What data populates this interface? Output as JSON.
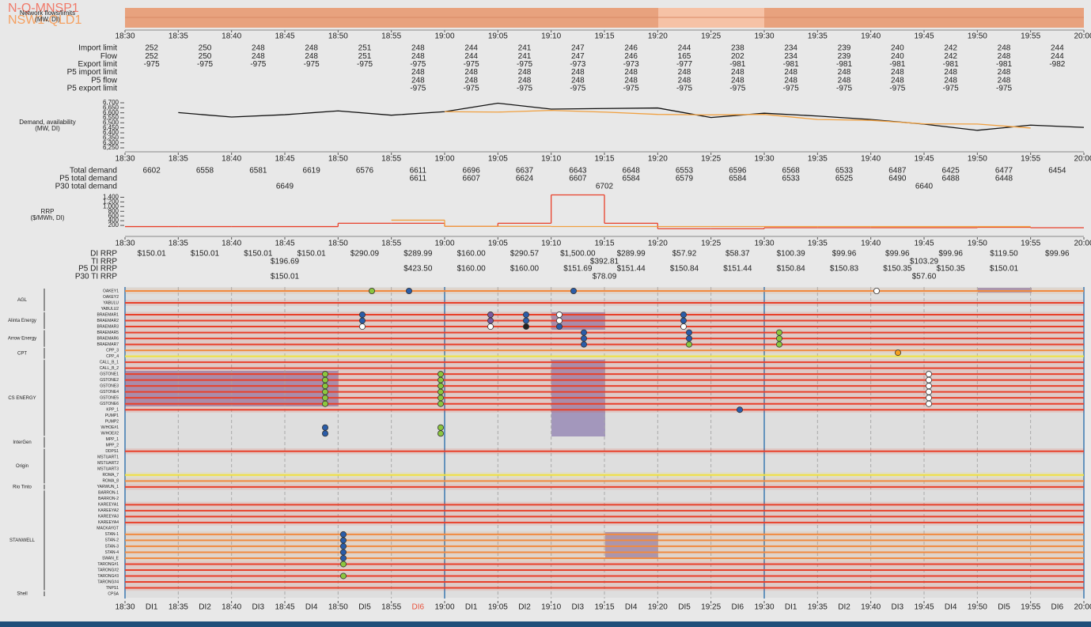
{
  "header": {
    "title": "N-Q-MNSP1",
    "subtitle": "NSW1-QLD1"
  },
  "time_ticks": [
    "18:30",
    "18:35",
    "18:40",
    "18:45",
    "18:50",
    "18:55",
    "19:00",
    "19:05",
    "19:10",
    "19:15",
    "19:20",
    "19:25",
    "19:30",
    "19:35",
    "19:40",
    "19:45",
    "19:50",
    "19:55",
    "20:00"
  ],
  "flows": {
    "label": [
      "Network flows/limits",
      "(MW, DI)"
    ],
    "rows": [
      {
        "label": "Import limit",
        "values": [
          252,
          250,
          248,
          248,
          251,
          248,
          244,
          241,
          247,
          246,
          244,
          238,
          234,
          239,
          240,
          242,
          248,
          244
        ]
      },
      {
        "label": "Flow",
        "values": [
          252,
          250,
          248,
          248,
          251,
          248,
          244,
          241,
          247,
          246,
          165,
          202,
          234,
          239,
          240,
          242,
          248,
          244
        ]
      },
      {
        "label": "Export limit",
        "values": [
          -975,
          -975,
          -975,
          -975,
          -975,
          -975,
          -975,
          -975,
          -973,
          -973,
          -977,
          -981,
          -981,
          -981,
          -981,
          -981,
          -981,
          -982
        ]
      },
      {
        "label": "P5 import limit",
        "values": [
          null,
          null,
          null,
          null,
          null,
          248,
          248,
          248,
          248,
          248,
          248,
          248,
          248,
          248,
          248,
          248,
          248,
          null
        ]
      },
      {
        "label": "P5 flow",
        "values": [
          null,
          null,
          null,
          null,
          null,
          248,
          248,
          248,
          248,
          248,
          248,
          248,
          248,
          248,
          248,
          248,
          248,
          null
        ]
      },
      {
        "label": "P5 export limit",
        "values": [
          null,
          null,
          null,
          null,
          null,
          -975,
          -975,
          -975,
          -975,
          -975,
          -975,
          -975,
          -975,
          -975,
          -975,
          -975,
          -975,
          null
        ]
      }
    ]
  },
  "demand": {
    "label": [
      "Demand, availability",
      "(MW, DI)"
    ],
    "ylim": [
      6250,
      6700
    ],
    "yticks": [
      {
        "value": 6250,
        "label": "6,250"
      },
      {
        "value": 6300,
        "label": "6,300"
      },
      {
        "value": 6350,
        "label": "6,350"
      },
      {
        "value": 6400,
        "label": "6,400"
      },
      {
        "value": 6450,
        "label": "6,450"
      },
      {
        "value": 6500,
        "label": "6,500"
      },
      {
        "value": 6550,
        "label": "6,550"
      },
      {
        "value": 6600,
        "label": "6,600"
      },
      {
        "value": 6650,
        "label": "6,650"
      },
      {
        "value": 6700,
        "label": "6,700"
      }
    ],
    "rows": [
      {
        "label": "Total demand",
        "color": "#111111",
        "values": [
          6602,
          6558,
          6581,
          6619,
          6576,
          6611,
          6696,
          6637,
          6643,
          6648,
          6553,
          6596,
          6568,
          6533,
          6487,
          6425,
          6477,
          6454
        ]
      },
      {
        "label": "P5 total demand",
        "color": "#f0a040",
        "values": [
          null,
          null,
          null,
          null,
          null,
          6611,
          6607,
          6624,
          6607,
          6584,
          6579,
          6584,
          6533,
          6525,
          6490,
          6488,
          6448,
          null
        ]
      },
      {
        "label": "P30 total demand",
        "values": [
          6649,
          6702,
          6640
        ]
      }
    ]
  },
  "rrp": {
    "label": [
      "RRP",
      "($/MWh, DI)"
    ],
    "ylim": [
      0,
      1500
    ],
    "yticks": [
      200,
      400,
      {
        "value": 600,
        "label": "600"
      },
      800,
      {
        "value": 1000,
        "label": "1,000"
      },
      {
        "value": 1200,
        "label": "1,200"
      },
      {
        "value": 1400,
        "label": "1,400"
      }
    ],
    "rows": [
      {
        "label": "DI RRP",
        "color": "#e8402a",
        "values": [
          150.01,
          150.01,
          150.01,
          150.01,
          290.09,
          289.99,
          160.0,
          290.57,
          1500.0,
          289.99,
          57.92,
          58.37,
          100.39,
          99.96,
          99.96,
          99.96,
          119.5,
          99.96
        ],
        "value_labels": [
          "$150.01",
          "$150.01",
          "$150.01",
          "$150.01",
          "$290.09",
          "$289.99",
          "$160.00",
          "$290.57",
          "$1,500.00",
          "$289.99",
          "$57.92",
          "$58.37",
          "$100.39",
          "$99.96",
          "$99.96",
          "$99.96",
          "$119.50",
          "$99.96"
        ]
      },
      {
        "label": "TI RRP",
        "values": [
          196.69,
          392.81,
          103.29
        ],
        "value_labels": [
          "$196.69",
          "$392.81",
          "$103.29"
        ]
      },
      {
        "label": "P5 DI RRP",
        "color": "#f0a040",
        "values": [
          null,
          null,
          null,
          null,
          null,
          423.5,
          160.0,
          160.0,
          151.69,
          151.44,
          150.84,
          151.44,
          150.84,
          150.83,
          150.35,
          150.35,
          150.01,
          null
        ],
        "value_labels": [
          null,
          null,
          null,
          null,
          null,
          "$423.50",
          "$160.00",
          "$160.00",
          "$151.69",
          "$151.44",
          "$150.84",
          "$151.44",
          "$150.84",
          "$150.83",
          "$150.35",
          "$150.35",
          "$150.01",
          null
        ]
      },
      {
        "label": "P30 TI RRP",
        "values": [
          150.01,
          78.09,
          57.6
        ],
        "value_labels": [
          "$150.01",
          "$78.09",
          "$57.60"
        ]
      }
    ]
  },
  "bids": {
    "groups": [
      {
        "name": "AGL",
        "units": [
          {
            "name": "OAKEY1",
            "color": "#f08a40"
          },
          {
            "name": "OAKEY2"
          },
          {
            "name": "YABULU",
            "color": "#e8402a"
          },
          {
            "name": "YABULU2"
          }
        ]
      },
      {
        "name": "Alinta Energy",
        "units": [
          {
            "name": "BRAEMAR1",
            "color": "#e8402a"
          },
          {
            "name": "BRAEMAR2",
            "color": "#e8402a"
          },
          {
            "name": "BRAEMAR3",
            "color": "#e8402a"
          }
        ]
      },
      {
        "name": "Arrow Energy",
        "units": [
          {
            "name": "BRAEMAR5",
            "color": "#e8402a"
          },
          {
            "name": "BRAEMAR6",
            "color": "#e8402a"
          },
          {
            "name": "BRAEMAR7",
            "color": "#e8402a"
          }
        ]
      },
      {
        "name": "CPT",
        "units": [
          {
            "name": "CPP_3",
            "color": "#f08a40"
          },
          {
            "name": "CPP_4",
            "color": "#f0e040"
          }
        ]
      },
      {
        "name": "CS ENERGY",
        "units": [
          {
            "name": "CALL_B_1",
            "color": "#e8402a"
          },
          {
            "name": "CALL_B_2",
            "color": "#e8402a"
          },
          {
            "name": "GSTONE1",
            "color": "#e8402a"
          },
          {
            "name": "GSTONE2",
            "color": "#e8402a"
          },
          {
            "name": "GSTONE3",
            "color": "#e8402a"
          },
          {
            "name": "GSTONE4",
            "color": "#e8402a"
          },
          {
            "name": "GSTONE5",
            "color": "#e8402a"
          },
          {
            "name": "GSTONE6",
            "color": "#e8402a"
          },
          {
            "name": "KPP_1",
            "color": "#e8402a"
          },
          {
            "name": "PUMP1"
          },
          {
            "name": "PUMP2"
          },
          {
            "name": "W/HOE#1"
          },
          {
            "name": "W/HOE#2"
          }
        ]
      },
      {
        "name": "InterGen",
        "units": [
          {
            "name": "MPP_1"
          },
          {
            "name": "MPP_2"
          }
        ]
      },
      {
        "name": "Origin",
        "units": [
          {
            "name": "DDPS1",
            "color": "#e8402a"
          },
          {
            "name": "MSTUART1"
          },
          {
            "name": "MSTUART2"
          },
          {
            "name": "MSTUART3"
          },
          {
            "name": "ROMA_7",
            "color": "#f0e040"
          },
          {
            "name": "ROMA_8",
            "color": "#f08a40"
          }
        ]
      },
      {
        "name": "Rio Tinto",
        "units": [
          {
            "name": "YARWUN_1",
            "color": "#e8402a"
          }
        ]
      },
      {
        "name": "STANWELL",
        "units": [
          {
            "name": "BARRON-1"
          },
          {
            "name": "BARRON-2"
          },
          {
            "name": "KAREEYA1",
            "color": "#e8402a"
          },
          {
            "name": "KAREEYA2",
            "color": "#e8402a"
          },
          {
            "name": "KAREEYA3",
            "color": "#e8402a"
          },
          {
            "name": "KAREEYA4",
            "color": "#e8402a"
          },
          {
            "name": "MACKAYGT"
          },
          {
            "name": "STAN-1",
            "color": "#f08a40"
          },
          {
            "name": "STAN-2",
            "color": "#f08a40"
          },
          {
            "name": "STAN-3",
            "color": "#f08a40"
          },
          {
            "name": "STAN-4",
            "color": "#f08a40"
          },
          {
            "name": "SWAN_E",
            "color": "#f08a40"
          },
          {
            "name": "TARONG#1",
            "color": "#e8402a"
          },
          {
            "name": "TARONG#2",
            "color": "#e8402a"
          },
          {
            "name": "TARONG#3",
            "color": "#e8402a"
          },
          {
            "name": "TARONG#4",
            "color": "#e8402a"
          },
          {
            "name": "TNPS1",
            "color": "#e8402a"
          }
        ]
      },
      {
        "name": "Shell",
        "units": [
          {
            "name": "CPSA"
          }
        ]
      }
    ],
    "di_labels": [
      "DI1",
      "DI2",
      "DI3",
      "DI4",
      "DI5",
      {
        "label": "DI6",
        "color": "#e8503a"
      },
      "DI1",
      "DI2",
      "DI3",
      "DI4",
      "DI5",
      "DI6",
      "DI1",
      "DI2",
      "DI3",
      "DI4",
      "DI5",
      "DI6"
    ]
  }
}
